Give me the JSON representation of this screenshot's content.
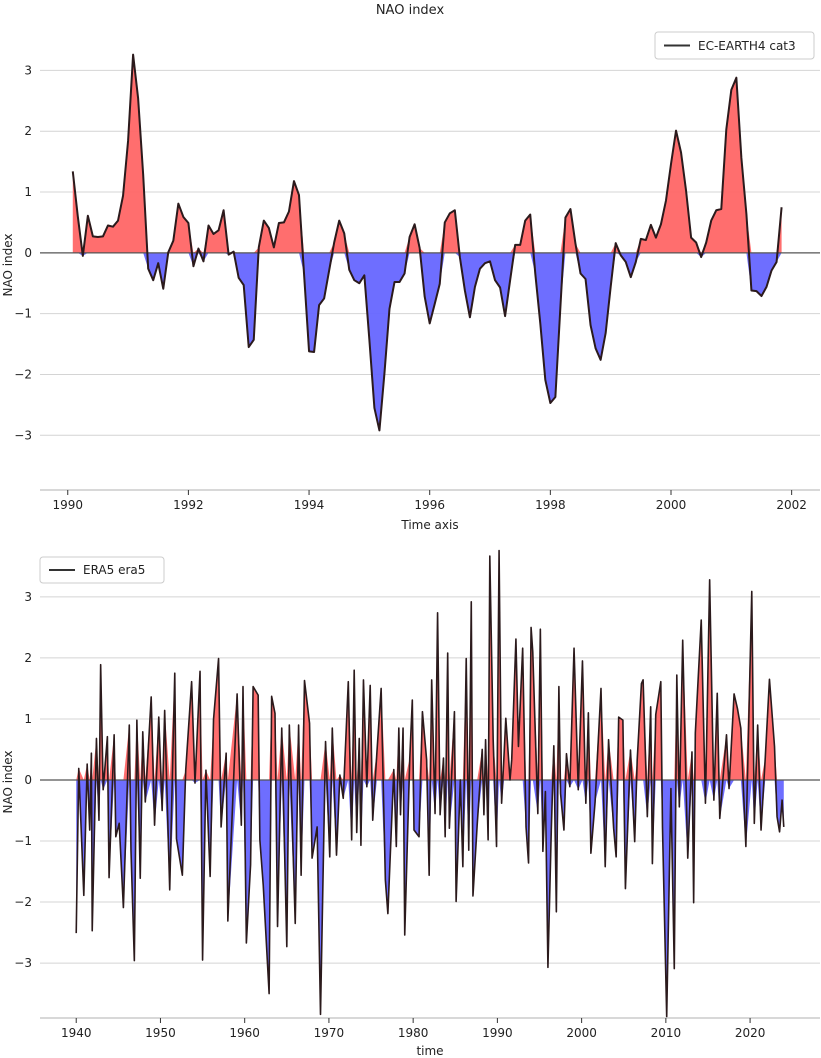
{
  "title": "NAO index",
  "colors": {
    "positive_fill": "#ff6666",
    "negative_fill": "#6666ff",
    "line": "#2b1a1c",
    "zero_line": "#555555",
    "grid": "#d4d4d4"
  },
  "chart_data": [
    {
      "type": "area",
      "title": "NAO index",
      "xlabel": "Time axis",
      "ylabel": "NAO index",
      "legend": {
        "label": "EC-EARTH4 cat3",
        "placement": "top-right"
      },
      "xlim": [
        1989.54,
        2002.47
      ],
      "ylim": [
        -3.9,
        3.5
      ],
      "xticks": [
        1990,
        1992,
        1994,
        1996,
        1998,
        2000,
        2002
      ],
      "yticks": [
        -3,
        -2,
        -1,
        0,
        1,
        2,
        3
      ],
      "grid": true,
      "fill": "red above 0, blue below 0",
      "series": [
        {
          "name": "EC-EARTH4 cat3",
          "start": "1990-02",
          "frequency": "monthly",
          "values": [
            1.34,
            0.6,
            -0.05,
            0.61,
            0.27,
            0.26,
            0.27,
            0.45,
            0.43,
            0.53,
            0.94,
            1.84,
            3.26,
            2.54,
            1.29,
            -0.26,
            -0.45,
            -0.17,
            -0.59,
            0.01,
            0.2,
            0.81,
            0.59,
            0.49,
            -0.22,
            0.07,
            -0.14,
            0.45,
            0.31,
            0.37,
            0.7,
            -0.03,
            0.02,
            -0.41,
            -0.53,
            -1.55,
            -1.43,
            0.09,
            0.53,
            0.41,
            0.09,
            0.49,
            0.5,
            0.68,
            1.18,
            0.95,
            -0.34,
            -1.62,
            -1.63,
            -0.86,
            -0.75,
            -0.29,
            0.17,
            0.53,
            0.32,
            -0.28,
            -0.45,
            -0.5,
            -0.37,
            -1.43,
            -2.55,
            -2.92,
            -1.98,
            -0.92,
            -0.48,
            -0.48,
            -0.34,
            0.26,
            0.47,
            0.08,
            -0.72,
            -1.16,
            -0.84,
            -0.51,
            0.5,
            0.65,
            0.7,
            -0.07,
            -0.62,
            -1.06,
            -0.56,
            -0.26,
            -0.17,
            -0.14,
            -0.45,
            -0.57,
            -1.04,
            -0.45,
            0.13,
            0.13,
            0.53,
            0.63,
            -0.34,
            -1.16,
            -2.09,
            -2.47,
            -2.37,
            -0.89,
            0.58,
            0.72,
            0.15,
            -0.34,
            -0.43,
            -1.19,
            -1.57,
            -1.76,
            -1.32,
            -0.56,
            0.16,
            -0.04,
            -0.15,
            -0.4,
            -0.15,
            0.23,
            0.21,
            0.46,
            0.25,
            0.47,
            0.86,
            1.46,
            2.01,
            1.65,
            1.02,
            0.25,
            0.17,
            -0.07,
            0.17,
            0.53,
            0.7,
            0.72,
            2.03,
            2.68,
            2.88,
            1.56,
            0.64,
            -0.62,
            -0.63,
            -0.71,
            -0.56,
            -0.29,
            -0.15,
            0.75
          ]
        }
      ]
    },
    {
      "type": "area",
      "xlabel": "time",
      "ylabel": "NAO index",
      "legend": {
        "label": "ERA5 era5",
        "placement": "top-left"
      },
      "xlim": [
        1935.7,
        2028.3
      ],
      "ylim": [
        -3.9,
        3.85
      ],
      "xticks": [
        1940,
        1950,
        1960,
        1970,
        1980,
        1990,
        2000,
        2010,
        2020
      ],
      "yticks": [
        -3,
        -2,
        -1,
        0,
        1,
        2,
        3
      ],
      "grid": true,
      "fill": "red above 0, blue below 0",
      "series": [
        {
          "name": "ERA5 era5",
          "points": [
            [
              1940.0,
              -2.51
            ],
            [
              1940.3,
              0.19
            ],
            [
              1940.9,
              -1.89
            ],
            [
              1941.3,
              0.26
            ],
            [
              1941.6,
              -0.82
            ],
            [
              1941.8,
              0.44
            ],
            [
              1941.9,
              -2.47
            ],
            [
              1942.4,
              0.68
            ],
            [
              1942.7,
              -0.66
            ],
            [
              1942.9,
              1.89
            ],
            [
              1943.2,
              -0.16
            ],
            [
              1943.7,
              0.71
            ],
            [
              1943.9,
              -1.6
            ],
            [
              1944.5,
              0.74
            ],
            [
              1944.7,
              -0.93
            ],
            [
              1945.1,
              -0.71
            ],
            [
              1945.6,
              -2.09
            ],
            [
              1946.3,
              0.9
            ],
            [
              1946.5,
              -1.15
            ],
            [
              1946.9,
              -2.96
            ],
            [
              1947.2,
              0.98
            ],
            [
              1947.6,
              -1.61
            ],
            [
              1947.9,
              0.79
            ],
            [
              1948.2,
              -0.36
            ],
            [
              1948.9,
              1.36
            ],
            [
              1949.3,
              -0.74
            ],
            [
              1949.8,
              1.03
            ],
            [
              1950.2,
              -0.5
            ],
            [
              1950.5,
              1.14
            ],
            [
              1951.1,
              -1.8
            ],
            [
              1951.7,
              1.75
            ],
            [
              1951.9,
              -0.96
            ],
            [
              1952.6,
              -1.56
            ],
            [
              1953.0,
              0.16
            ],
            [
              1953.7,
              1.61
            ],
            [
              1954.1,
              -0.05
            ],
            [
              1954.7,
              1.78
            ],
            [
              1955.0,
              -2.95
            ],
            [
              1955.4,
              0.16
            ],
            [
              1955.9,
              -1.58
            ],
            [
              1956.3,
              0.99
            ],
            [
              1956.9,
              1.99
            ],
            [
              1957.2,
              -0.77
            ],
            [
              1957.8,
              0.44
            ],
            [
              1958.0,
              -2.31
            ],
            [
              1959.1,
              1.41
            ],
            [
              1959.6,
              -0.74
            ],
            [
              1959.8,
              1.53
            ],
            [
              1960.2,
              -2.67
            ],
            [
              1960.7,
              -1.39
            ],
            [
              1961.0,
              1.53
            ],
            [
              1961.6,
              1.39
            ],
            [
              1961.8,
              -0.98
            ],
            [
              1962.2,
              -1.72
            ],
            [
              1962.9,
              -3.5
            ],
            [
              1963.2,
              1.37
            ],
            [
              1963.6,
              1.09
            ],
            [
              1963.9,
              -2.4
            ],
            [
              1964.4,
              0.85
            ],
            [
              1965.0,
              -2.73
            ],
            [
              1965.3,
              0.9
            ],
            [
              1966.0,
              -2.35
            ],
            [
              1966.4,
              0.9
            ],
            [
              1966.7,
              -1.56
            ],
            [
              1967.1,
              1.63
            ],
            [
              1967.7,
              0.93
            ],
            [
              1968.0,
              -1.28
            ],
            [
              1968.6,
              -0.77
            ],
            [
              1969.0,
              -3.84
            ],
            [
              1969.6,
              0.63
            ],
            [
              1970.1,
              -1.26
            ],
            [
              1970.4,
              0.85
            ],
            [
              1970.9,
              -1.23
            ],
            [
              1971.3,
              0.08
            ],
            [
              1971.7,
              -0.3
            ],
            [
              1972.3,
              1.61
            ],
            [
              1972.7,
              -0.98
            ],
            [
              1973.0,
              1.8
            ],
            [
              1973.3,
              -0.86
            ],
            [
              1973.6,
              0.68
            ],
            [
              1973.8,
              -1.07
            ],
            [
              1974.1,
              1.64
            ],
            [
              1974.5,
              -0.11
            ],
            [
              1974.9,
              1.55
            ],
            [
              1975.2,
              -0.66
            ],
            [
              1975.7,
              0.46
            ],
            [
              1976.2,
              1.5
            ],
            [
              1976.7,
              -1.64
            ],
            [
              1977.0,
              -2.19
            ],
            [
              1977.7,
              0.17
            ],
            [
              1978.0,
              -1.09
            ],
            [
              1978.3,
              0.85
            ],
            [
              1978.5,
              -0.57
            ],
            [
              1978.8,
              0.85
            ],
            [
              1979.0,
              -2.54
            ],
            [
              1979.6,
              0.36
            ],
            [
              1979.9,
              1.31
            ],
            [
              1980.1,
              -0.82
            ],
            [
              1980.7,
              -0.93
            ],
            [
              1981.1,
              1.12
            ],
            [
              1981.6,
              0.33
            ],
            [
              1981.9,
              -1.56
            ],
            [
              1982.2,
              1.64
            ],
            [
              1982.6,
              -0.55
            ],
            [
              1982.9,
              2.74
            ],
            [
              1983.2,
              -0.57
            ],
            [
              1983.6,
              0.36
            ],
            [
              1983.8,
              -0.93
            ],
            [
              1984.1,
              2.08
            ],
            [
              1984.3,
              -0.79
            ],
            [
              1984.9,
              1.12
            ],
            [
              1985.1,
              -1.99
            ],
            [
              1985.6,
              0.0
            ],
            [
              1985.9,
              -1.42
            ],
            [
              1986.3,
              1.99
            ],
            [
              1986.6,
              -1.15
            ],
            [
              1986.9,
              2.92
            ],
            [
              1987.1,
              -1.9
            ],
            [
              1987.6,
              -0.74
            ],
            [
              1988.2,
              0.5
            ],
            [
              1988.4,
              -0.57
            ],
            [
              1988.6,
              0.66
            ],
            [
              1988.9,
              -0.98
            ],
            [
              1989.1,
              3.67
            ],
            [
              1989.5,
              0.66
            ],
            [
              1989.9,
              -1.09
            ],
            [
              1990.2,
              3.76
            ],
            [
              1990.5,
              -0.38
            ],
            [
              1990.8,
              0.44
            ],
            [
              1991.0,
              1.01
            ],
            [
              1991.5,
              0.0
            ],
            [
              1991.7,
              0.33
            ],
            [
              1992.2,
              2.31
            ],
            [
              1992.5,
              0.55
            ],
            [
              1993.0,
              2.16
            ],
            [
              1993.4,
              -0.77
            ],
            [
              1993.7,
              -1.36
            ],
            [
              1994.0,
              2.5
            ],
            [
              1994.2,
              2.1
            ],
            [
              1994.8,
              -0.55
            ],
            [
              1995.1,
              2.47
            ],
            [
              1995.4,
              -1.17
            ],
            [
              1995.7,
              -0.19
            ],
            [
              1996.0,
              -3.07
            ],
            [
              1996.4,
              -0.82
            ],
            [
              1996.7,
              0.56
            ],
            [
              1997.0,
              -2.16
            ],
            [
              1997.3,
              1.53
            ],
            [
              1997.5,
              -0.22
            ],
            [
              1997.9,
              -0.82
            ],
            [
              1998.2,
              0.43
            ],
            [
              1998.6,
              -0.11
            ],
            [
              1999.1,
              2.16
            ],
            [
              1999.6,
              -0.16
            ],
            [
              2000.1,
              1.95
            ],
            [
              2000.5,
              -0.38
            ],
            [
              2000.8,
              1.1
            ],
            [
              2001.1,
              -1.2
            ],
            [
              2001.6,
              -0.36
            ],
            [
              2002.3,
              1.5
            ],
            [
              2002.8,
              -1.42
            ],
            [
              2003.2,
              0.66
            ],
            [
              2003.8,
              -0.79
            ],
            [
              2004.1,
              -1.26
            ],
            [
              2004.4,
              1.03
            ],
            [
              2004.9,
              0.98
            ],
            [
              2005.2,
              -1.78
            ],
            [
              2005.8,
              0.49
            ],
            [
              2006.3,
              -1.01
            ],
            [
              2006.6,
              0.33
            ],
            [
              2007.1,
              1.58
            ],
            [
              2007.3,
              1.64
            ],
            [
              2007.8,
              -0.6
            ],
            [
              2008.2,
              1.2
            ],
            [
              2008.4,
              -1.37
            ],
            [
              2008.8,
              1.07
            ],
            [
              2009.4,
              1.61
            ],
            [
              2009.6,
              -0.77
            ],
            [
              2010.1,
              -3.88
            ],
            [
              2010.6,
              -0.14
            ],
            [
              2011.0,
              -3.09
            ],
            [
              2011.3,
              1.72
            ],
            [
              2011.6,
              -0.44
            ],
            [
              2012.0,
              2.29
            ],
            [
              2012.6,
              -1.28
            ],
            [
              2013.1,
              0.46
            ],
            [
              2013.3,
              -2.01
            ],
            [
              2013.5,
              0.77
            ],
            [
              2014.2,
              2.62
            ],
            [
              2014.7,
              -0.38
            ],
            [
              2015.2,
              3.28
            ],
            [
              2015.7,
              -0.33
            ],
            [
              2016.1,
              1.42
            ],
            [
              2016.4,
              -0.63
            ],
            [
              2017.2,
              0.74
            ],
            [
              2017.5,
              -0.14
            ],
            [
              2018.1,
              1.41
            ],
            [
              2018.5,
              1.17
            ],
            [
              2018.9,
              0.85
            ],
            [
              2019.5,
              -1.09
            ],
            [
              2020.2,
              3.09
            ],
            [
              2020.5,
              -0.71
            ],
            [
              2020.9,
              0.9
            ],
            [
              2021.3,
              -0.82
            ],
            [
              2021.8,
              0.36
            ],
            [
              2022.3,
              1.65
            ],
            [
              2022.9,
              0.55
            ],
            [
              2023.2,
              -0.6
            ],
            [
              2023.5,
              -0.85
            ],
            [
              2023.8,
              -0.33
            ],
            [
              2024.0,
              -0.77
            ]
          ]
        }
      ]
    }
  ]
}
